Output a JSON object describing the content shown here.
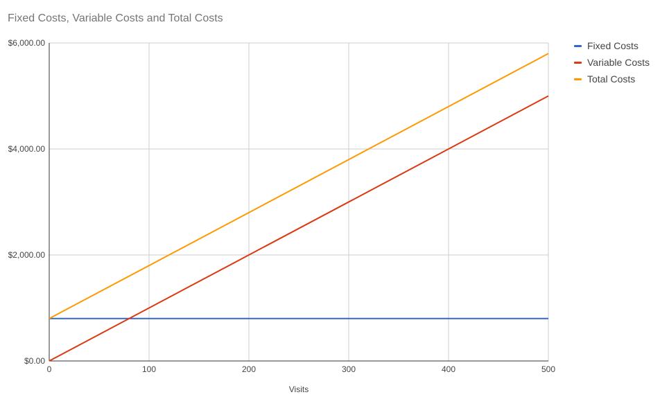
{
  "chart_data": {
    "type": "line",
    "title": "Fixed Costs, Variable Costs and Total Costs",
    "xlabel": "Visits",
    "ylabel": "",
    "xlim": [
      0,
      500
    ],
    "ylim": [
      0,
      6000
    ],
    "x_ticks": [
      0,
      100,
      200,
      300,
      400,
      500
    ],
    "x_tick_labels": [
      "0",
      "100",
      "200",
      "300",
      "400",
      "500"
    ],
    "y_ticks": [
      0,
      2000,
      4000,
      6000
    ],
    "y_tick_labels": [
      "$0.00",
      "$2,000.00",
      "$4,000.00",
      "$6,000.00"
    ],
    "grid": true,
    "legend_position": "right",
    "x": [
      0,
      500
    ],
    "series": [
      {
        "name": "Fixed Costs",
        "color": "#3366cc",
        "values": [
          800,
          800
        ]
      },
      {
        "name": "Variable Costs",
        "color": "#dc3912",
        "values": [
          0,
          5000
        ]
      },
      {
        "name": "Total Costs",
        "color": "#ff9900",
        "values": [
          800,
          5800
        ]
      }
    ]
  }
}
